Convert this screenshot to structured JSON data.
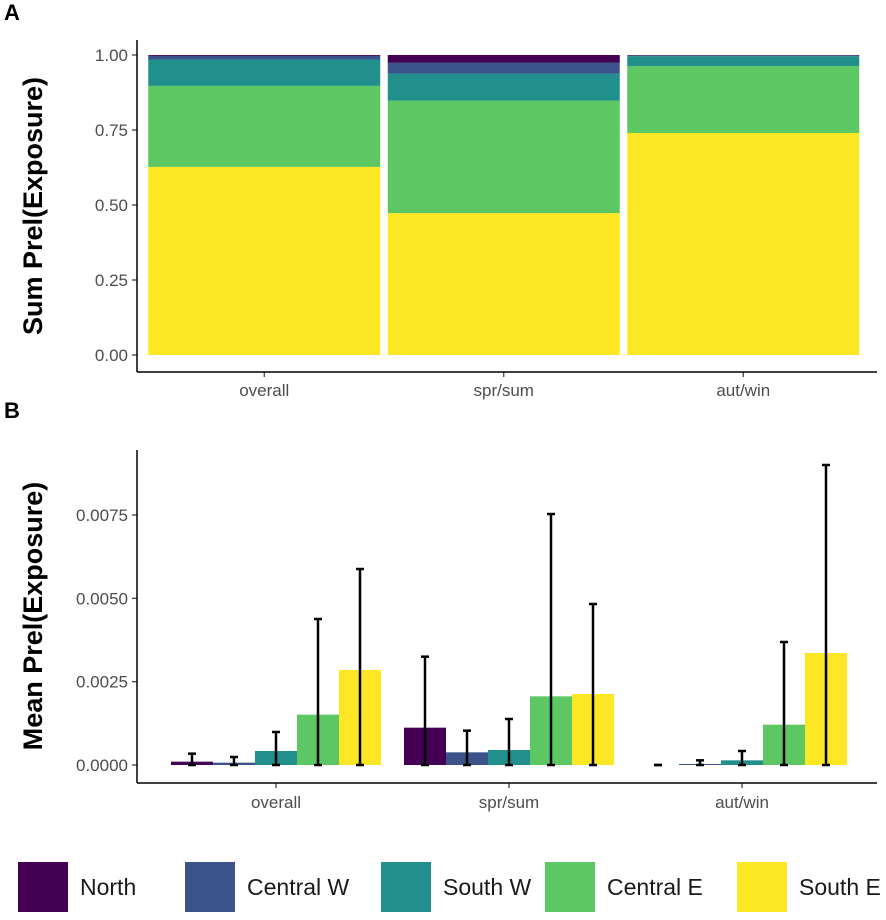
{
  "chart_data": [
    {
      "type": "bar",
      "stacked": true,
      "panel_label": "A",
      "title": "",
      "xlabel": "",
      "ylabel": "Sum Prel(Exposure)",
      "ylim": [
        0,
        1
      ],
      "yticks": [
        "0.00",
        "0.25",
        "0.50",
        "0.75",
        "1.00"
      ],
      "ytick_values": [
        0,
        0.25,
        0.5,
        0.75,
        1.0
      ],
      "categories": [
        "overall",
        "spr/sum",
        "aut/win"
      ],
      "series": [
        {
          "name": "North",
          "values": [
            0.003,
            0.025,
            0.001
          ]
        },
        {
          "name": "Central W",
          "values": [
            0.012,
            0.037,
            0.003
          ]
        },
        {
          "name": "South W",
          "values": [
            0.088,
            0.09,
            0.033
          ]
        },
        {
          "name": "Central E",
          "values": [
            0.27,
            0.375,
            0.223
          ]
        },
        {
          "name": "South E",
          "values": [
            0.627,
            0.473,
            0.74
          ]
        }
      ],
      "grid": false
    },
    {
      "type": "bar",
      "stacked": false,
      "panel_label": "B",
      "title": "",
      "xlabel": "",
      "ylabel": "Mean Prel(Exposure)",
      "ylim": [
        0,
        0.0093
      ],
      "yticks": [
        "0.0000",
        "0.0025",
        "0.0050",
        "0.0075"
      ],
      "ytick_values": [
        0,
        0.0025,
        0.005,
        0.0075
      ],
      "categories": [
        "overall",
        "spr/sum",
        "aut/win"
      ],
      "series": [
        {
          "name": "North",
          "values": [
            0.0001,
            0.00112,
            0.0
          ],
          "error_upper": [
            0.00034,
            0.00325,
            0.0
          ]
        },
        {
          "name": "Central W",
          "values": [
            7e-05,
            0.00038,
            3e-05
          ],
          "error_upper": [
            0.00024,
            0.00103,
            0.00014
          ]
        },
        {
          "name": "South W",
          "values": [
            0.00042,
            0.00045,
            0.00014
          ],
          "error_upper": [
            0.00099,
            0.00138,
            0.00042
          ]
        },
        {
          "name": "Central E",
          "values": [
            0.00151,
            0.00206,
            0.00121
          ],
          "error_upper": [
            0.00438,
            0.00753,
            0.00369
          ]
        },
        {
          "name": "South E",
          "values": [
            0.00285,
            0.00213,
            0.00336
          ],
          "error_upper": [
            0.00588,
            0.00483,
            0.009
          ]
        }
      ],
      "grid": false
    }
  ],
  "legend": {
    "placement": "bottom",
    "items": [
      "North",
      "Central W",
      "South W",
      "Central E",
      "South E"
    ]
  },
  "colors": [
    "#440154",
    "#3B528B",
    "#21908C",
    "#5DC863",
    "#FDE725"
  ]
}
